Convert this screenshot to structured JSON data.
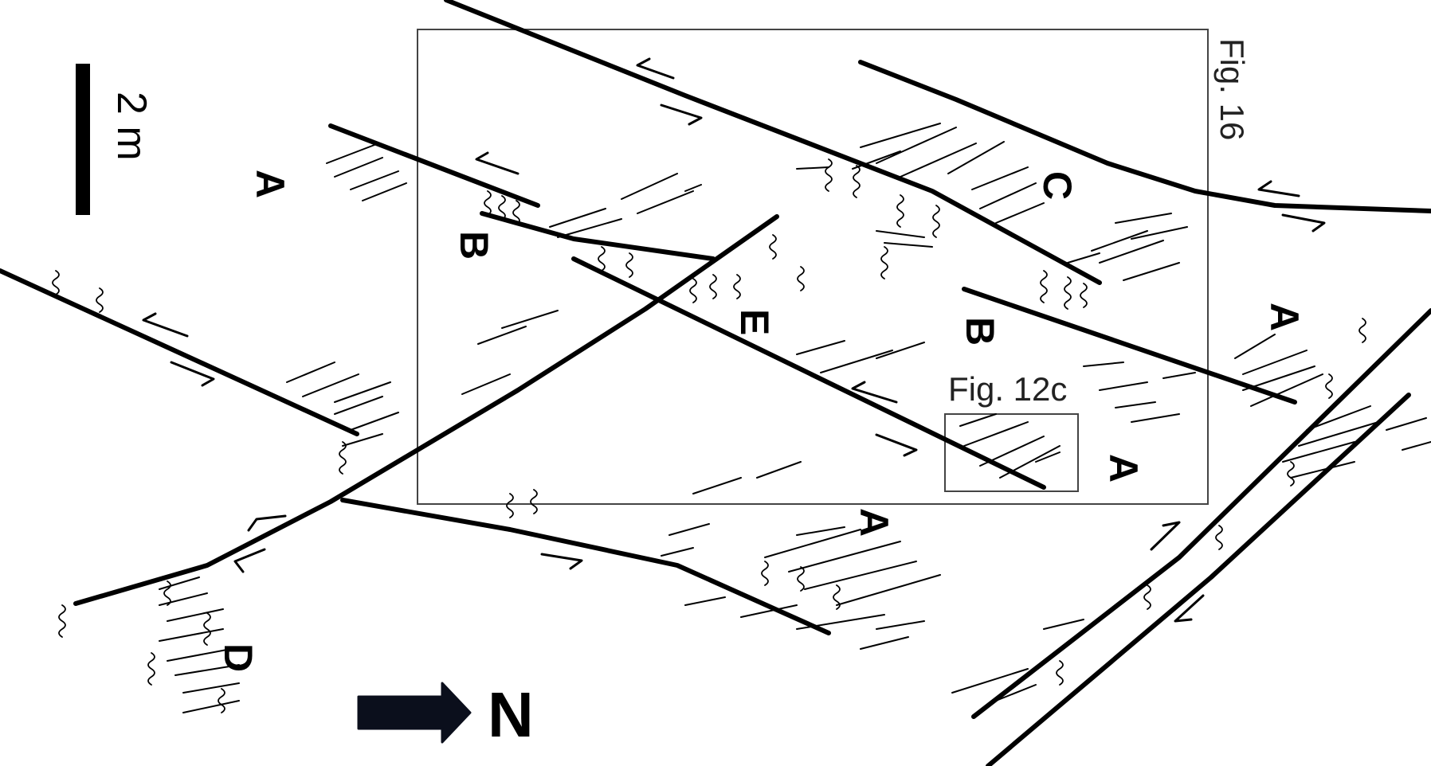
{
  "figure": {
    "scale_bar_label": "2 m",
    "north_label": "N",
    "insets": [
      {
        "id": "fig16",
        "label": "Fig. 16"
      },
      {
        "id": "fig12c",
        "label": "Fig. 12c"
      }
    ],
    "domain_labels": {
      "a1": "A",
      "a2": "A",
      "a3": "A",
      "a4": "A",
      "b1": "B",
      "b2": "B",
      "c": "C",
      "d": "D",
      "e": "E"
    }
  },
  "colors": {
    "ink": "#000000",
    "frame": "#444444",
    "background": "#ffffff"
  }
}
